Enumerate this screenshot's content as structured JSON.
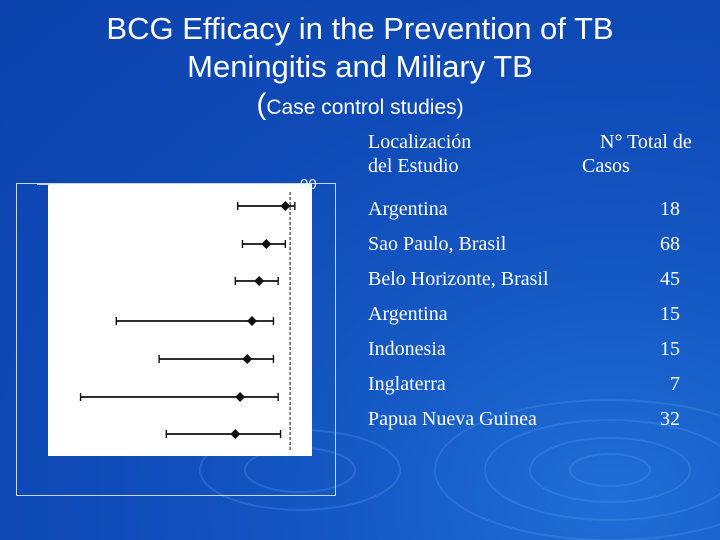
{
  "title": {
    "line1": "BCG Efficacy in the Prevention of TB",
    "line2": "Meningitis and Miliary TB",
    "subtitle_paren": "(",
    "subtitle_text": "Case control studies)"
  },
  "table": {
    "header_location": [
      "Localización",
      "del Estudio"
    ],
    "header_total": [
      "N° Total de",
      "Casos"
    ],
    "rows": [
      {
        "location": "Argentina",
        "cases": "18"
      },
      {
        "location": "Sao Paulo, Brasil",
        "cases": "68"
      },
      {
        "location": "Belo Horizonte, Brasil",
        "cases": "45"
      },
      {
        "location": "Argentina",
        "cases": "15"
      },
      {
        "location": "Indonesia",
        "cases": "15"
      },
      {
        "location": "Inglaterra",
        "cases": "7"
      },
      {
        "location": "Papua Nueva Guinea",
        "cases": "32"
      }
    ]
  },
  "chart_data": {
    "type": "scatter",
    "title": "",
    "axis_tick_label": "00",
    "reference_value": 1.0,
    "xlim": [
      0,
      1.05
    ],
    "series": [
      {
        "point": 0.98,
        "low": 0.78,
        "high": 1.02
      },
      {
        "point": 0.9,
        "low": 0.8,
        "high": 0.98
      },
      {
        "point": 0.87,
        "low": 0.77,
        "high": 0.95
      },
      {
        "point": 0.84,
        "low": 0.27,
        "high": 0.93
      },
      {
        "point": 0.82,
        "low": 0.45,
        "high": 0.93
      },
      {
        "point": 0.79,
        "low": 0.12,
        "high": 0.95
      },
      {
        "point": 0.77,
        "low": 0.48,
        "high": 0.96
      }
    ]
  },
  "colors": {
    "background": "#0f4bb8",
    "text": "#ffffff",
    "plot_bg": "#ffffff",
    "plot_ink": "#111111"
  }
}
